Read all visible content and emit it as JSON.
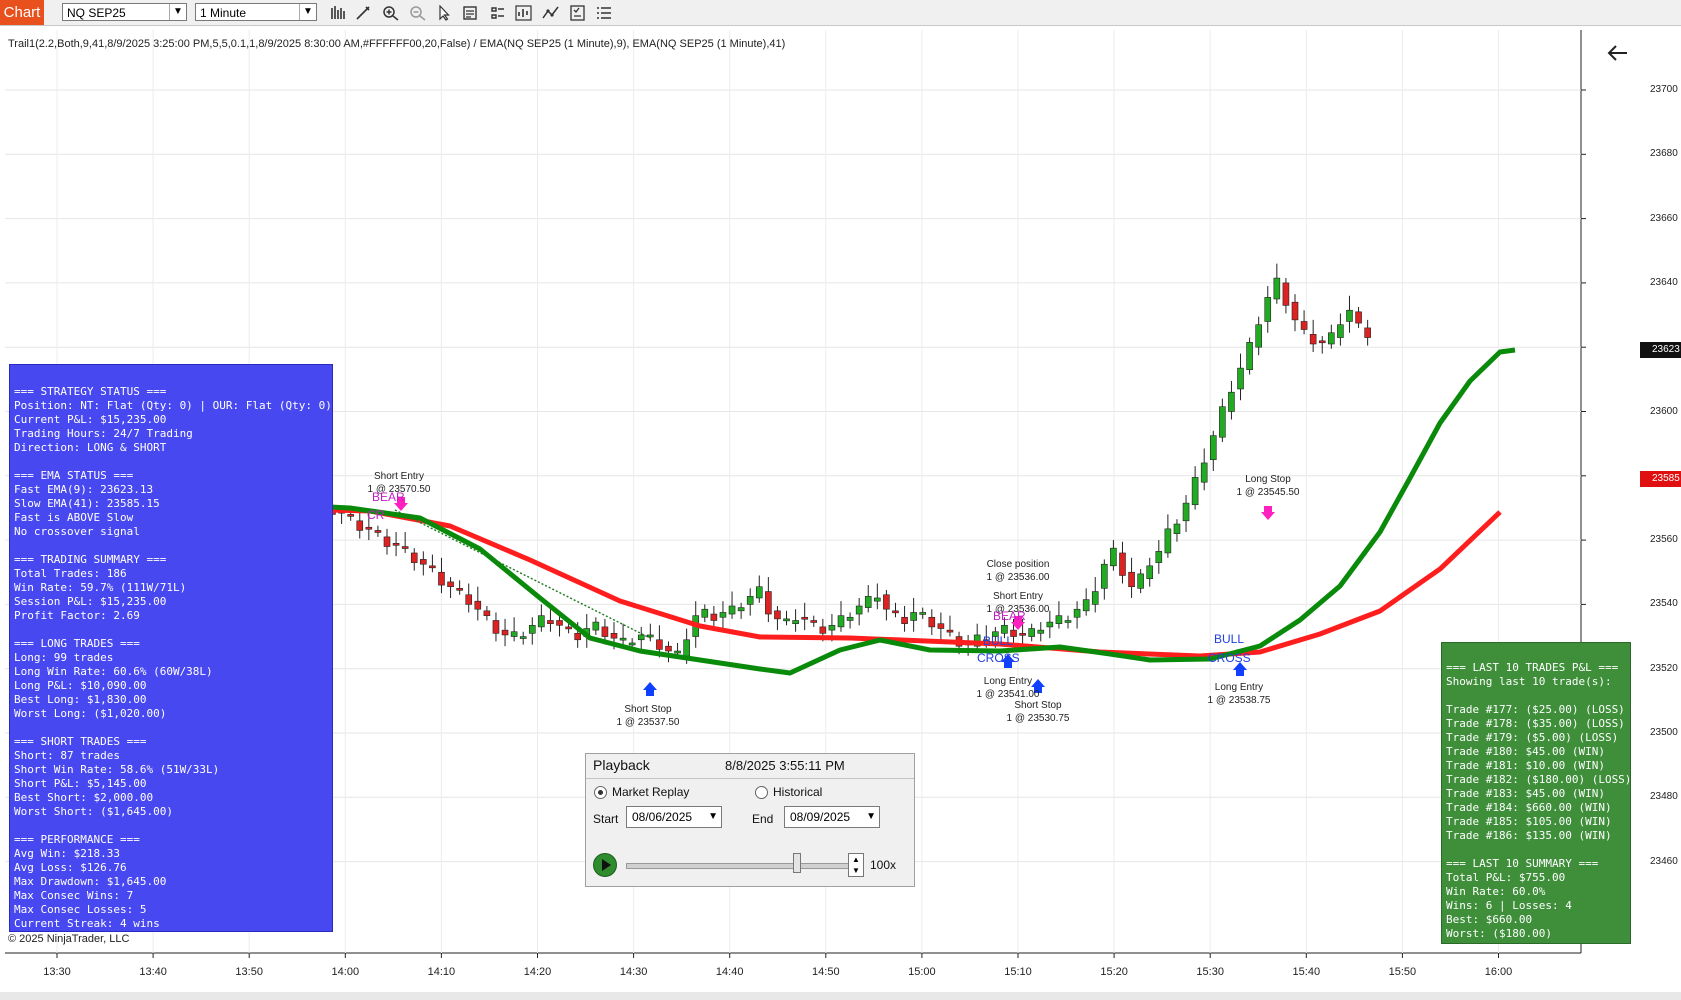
{
  "toolbar": {
    "chart_tab": "Chart",
    "instrument": "NQ SEP25",
    "interval": "1 Minute",
    "icons": [
      "bar-type-icon",
      "drawing-tools-icon",
      "zoom-in-icon",
      "zoom-out-icon",
      "pointer-icon",
      "data-box-icon",
      "properties-icon",
      "indicators-icon",
      "strategies-icon",
      "chart-list-icon"
    ]
  },
  "chart": {
    "indicator_label": "Trail1(2.2,Both,9,41,8/9/2025 3:25:00 PM,5,5,0.1,1,8/9/2025 8:30:00 AM,#FFFFFF00,20,False) / EMA(NQ SEP25 (1 Minute),9), EMA(NQ SEP25 (1 Minute),41)",
    "copyright": "© 2025 NinjaTrader, LLC",
    "colors": {
      "up": "#22aa22",
      "down": "#dd2222",
      "fast_ema": "#0a8a0a",
      "slow_ema": "#ff1e1e",
      "status_panel": "#4848f0",
      "summary_panel": "#3e8e3a"
    },
    "price_ticks": [
      "23700",
      "23680",
      "23660",
      "23640",
      "23620",
      "23600",
      "23580",
      "23560",
      "23540",
      "23520",
      "23500",
      "23480",
      "23460"
    ],
    "price_tags": {
      "last": "23623",
      "slow": "23585"
    },
    "time_ticks": [
      "13:30",
      "13:40",
      "13:50",
      "14:00",
      "14:10",
      "14:20",
      "14:30",
      "14:40",
      "14:50",
      "15:00",
      "15:10",
      "15:20",
      "15:30",
      "15:40",
      "15:50",
      "16:00"
    ],
    "annotations": [
      {
        "line1": "Short Entry",
        "line2": "1 @ 23570.50"
      },
      {
        "line1": "Short Stop",
        "line2": "1 @ 23537.50"
      },
      {
        "line1": "Close position",
        "line2": "1 @ 23536.00"
      },
      {
        "line1": "Short Entry",
        "line2": "1 @ 23536.00"
      },
      {
        "line1": "Long Entry",
        "line2": "1 @ 23541.00"
      },
      {
        "line1": "Short Stop",
        "line2": "1 @ 23530.75"
      },
      {
        "line1": "Long Stop",
        "line2": "1 @ 23545.50"
      },
      {
        "line1": "Long Entry",
        "line2": "1 @ 23538.75"
      }
    ],
    "cross_labels": {
      "bear": "BEAR",
      "bear2": "CR",
      "bull": "BULL",
      "cross": "CROSS",
      "bear3": "BEAR"
    }
  },
  "status_panel": {
    "lines": [
      "=== STRATEGY STATUS ===",
      "Position: NT: Flat (Qty: 0) | OUR: Flat (Qty: 0)",
      "Current P&L: $15,235.00",
      "Trading Hours: 24/7 Trading",
      "Direction: LONG & SHORT",
      "",
      "=== EMA STATUS ===",
      "Fast EMA(9): 23623.13",
      "Slow EMA(41): 23585.15",
      "Fast is ABOVE Slow",
      "No crossover signal",
      "",
      "=== TRADING SUMMARY ===",
      "Total Trades: 186",
      "Win Rate: 59.7% (111W/71L)",
      "Session P&L: $15,235.00",
      "Profit Factor: 2.69",
      "",
      "=== LONG TRADES ===",
      "Long: 99 trades",
      "Long Win Rate: 60.6% (60W/38L)",
      "Long P&L: $10,090.00",
      "Best Long: $1,830.00",
      "Worst Long: ($1,020.00)",
      "",
      "=== SHORT TRADES ===",
      "Short: 87 trades",
      "Short Win Rate: 58.6% (51W/33L)",
      "Short P&L: $5,145.00",
      "Best Short: $2,000.00",
      "Worst Short: ($1,645.00)",
      "",
      "=== PERFORMANCE ===",
      "Avg Win: $218.33",
      "Avg Loss: $126.76",
      "Max Drawdown: $1,645.00",
      "Max Consec Wins: 7",
      "Max Consec Losses: 5",
      "Current Streak: 4 wins"
    ]
  },
  "summary_panel": {
    "lines": [
      "=== LAST 10 TRADES P&L ===",
      "Showing last 10 trade(s):",
      "",
      "Trade #177: ($25.00) (LOSS)",
      "Trade #178: ($35.00) (LOSS)",
      "Trade #179: ($5.00) (LOSS)",
      "Trade #180: $45.00 (WIN)",
      "Trade #181: $10.00 (WIN)",
      "Trade #182: ($180.00) (LOSS)",
      "Trade #183: $45.00 (WIN)",
      "Trade #184: $660.00 (WIN)",
      "Trade #185: $105.00 (WIN)",
      "Trade #186: $135.00 (WIN)",
      "",
      "=== LAST 10 SUMMARY ===",
      "Total P&L: $755.00",
      "Win Rate: 60.0%",
      "Wins: 6 | Losses: 4",
      "Best: $660.00",
      "Worst: ($180.00)"
    ]
  },
  "playback": {
    "title": "Playback",
    "datetime": "8/8/2025 3:55:11 PM",
    "mode_replay": "Market Replay",
    "mode_historical": "Historical",
    "selected_mode": "Market Replay",
    "start_label": "Start",
    "start_value": "08/06/2025",
    "end_label": "End",
    "end_value": "08/09/2025",
    "speed": "100x",
    "speed_slider_fraction": 0.77
  }
}
